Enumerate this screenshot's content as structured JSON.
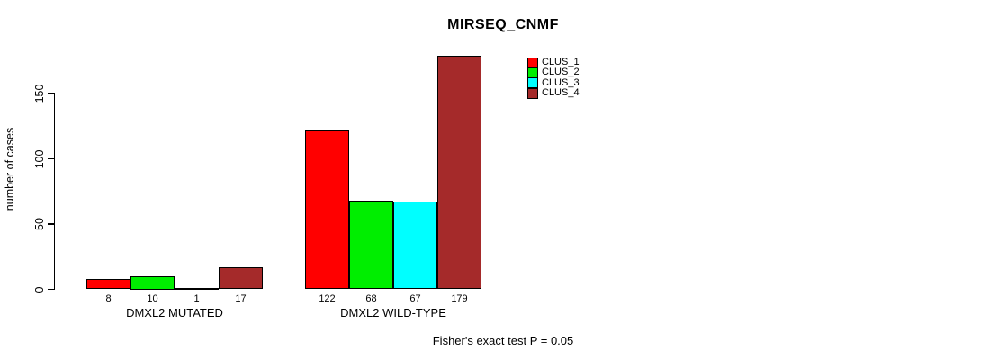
{
  "title": "MIRSEQ_CNMF",
  "footnote": "Fisher's exact test P = 0.05",
  "colors": {
    "clus_1": "#FF0000",
    "clus_2": "#00EE00",
    "clus_3": "#00FFFF",
    "clus_4": "#A52A2A",
    "axis": "#000000",
    "background": "#FFFFFF"
  },
  "chart_data": {
    "type": "bar",
    "title": "MIRSEQ_CNMF",
    "xlabel": "",
    "ylabel": "number of cases",
    "categories": [
      "DMXL2 MUTATED",
      "DMXL2 WILD-TYPE"
    ],
    "series": [
      {
        "name": "CLUS_1",
        "color": "#FF0000",
        "values": [
          8,
          122
        ]
      },
      {
        "name": "CLUS_2",
        "color": "#00EE00",
        "values": [
          10,
          68
        ]
      },
      {
        "name": "CLUS_3",
        "color": "#00FFFF",
        "values": [
          1,
          67
        ]
      },
      {
        "name": "CLUS_4",
        "color": "#A52A2A",
        "values": [
          17,
          179
        ]
      }
    ],
    "yticks": [
      0,
      50,
      100,
      150
    ],
    "ylim": [
      0,
      185
    ],
    "grid": false,
    "bar_value_labels_shown": true,
    "legend_position": "top-right",
    "annotation": "Fisher's exact test P = 0.05"
  }
}
